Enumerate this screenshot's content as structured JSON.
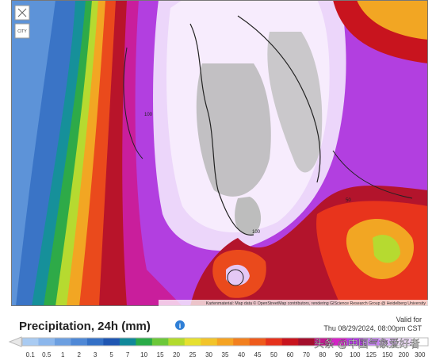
{
  "map": {
    "attribution": "Kartenmaterial: Map data © OpenStreetMap contributors, rendering GIScience Research Group @ Heidelberg University",
    "contour_labels": [
      "100",
      "50",
      "100"
    ],
    "control_label": "CITY"
  },
  "legend": {
    "title": "Precipitation, 24h (mm)",
    "valid_label": "Valid for",
    "valid_time": "Thu 08/29/2024, 08:00pm CST",
    "ticks": [
      "0.1",
      "0.5",
      "1",
      "2",
      "3",
      "5",
      "7",
      "10",
      "15",
      "20",
      "25",
      "30",
      "35",
      "40",
      "45",
      "50",
      "60",
      "70",
      "80",
      "90",
      "100",
      "125",
      "150",
      "200",
      "300"
    ],
    "colors": [
      "#a9cbf2",
      "#8cb7ec",
      "#6c9fe0",
      "#4f88d6",
      "#3470c6",
      "#1f56b2",
      "#11889a",
      "#2aab48",
      "#6cc83a",
      "#b2da2e",
      "#e6e030",
      "#f2c42a",
      "#f5a323",
      "#f2801f",
      "#ee5b1c",
      "#e5321c",
      "#c8141e",
      "#a30f2c",
      "#c01b8e",
      "#d424c6",
      "#b63ce2",
      "#c580f0",
      "#ddb4f6",
      "#f1defb",
      "#ffffff"
    ]
  },
  "watermark": "头条 @中国气象爱好者"
}
